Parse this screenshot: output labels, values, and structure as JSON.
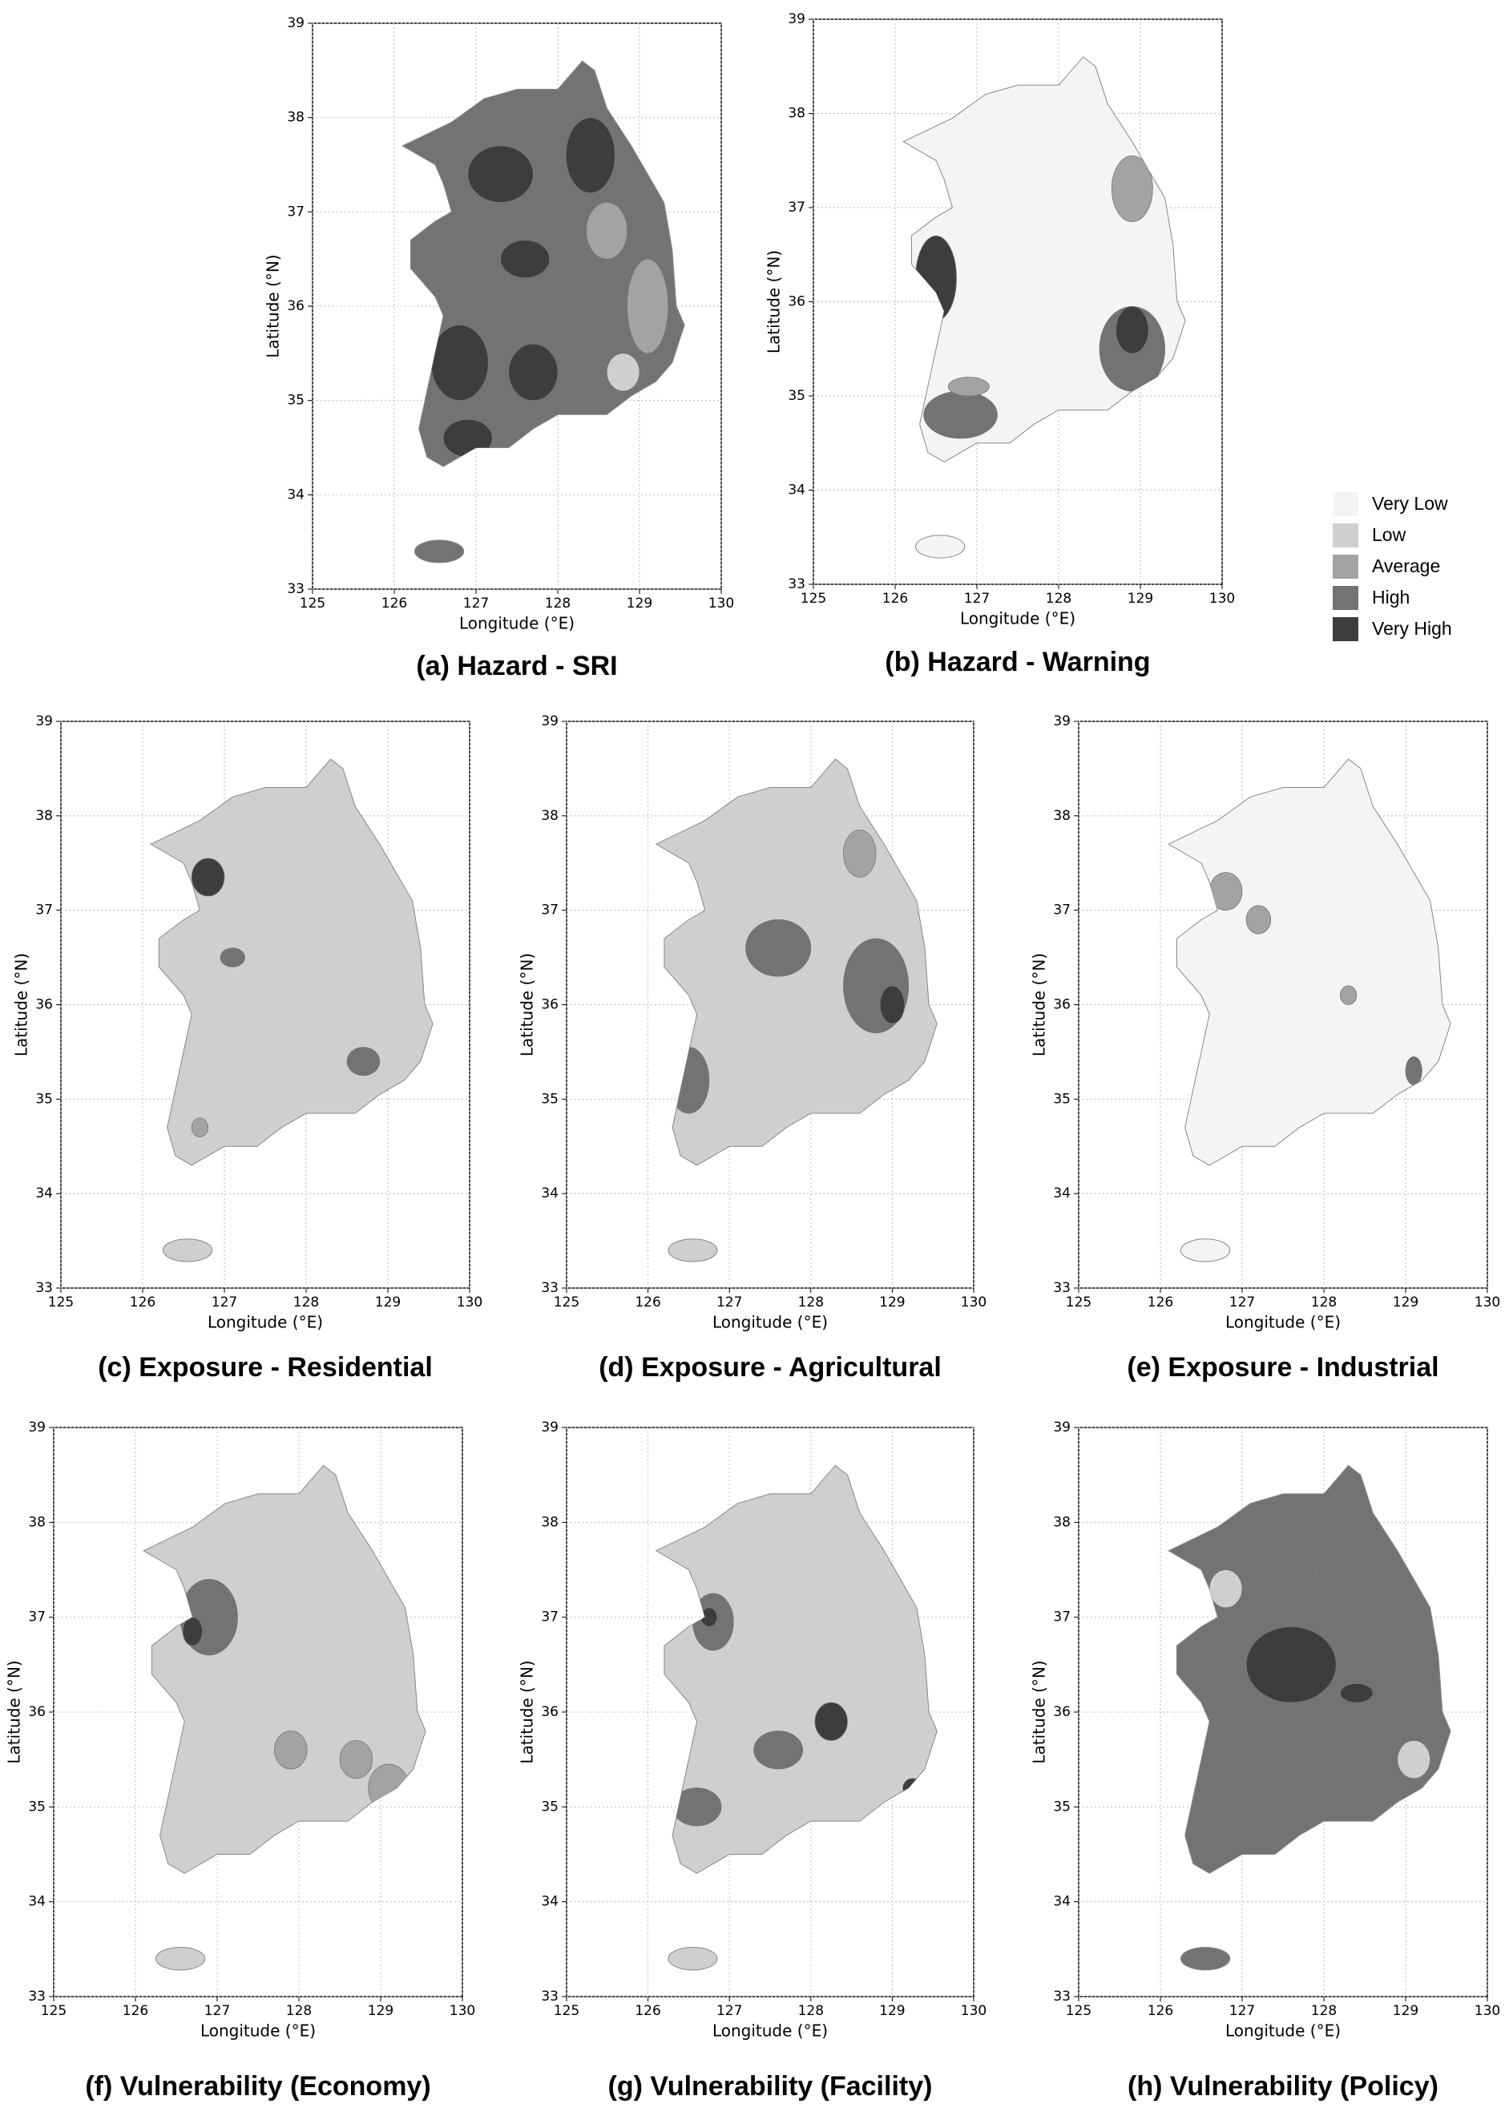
{
  "maps": [
    {
      "title": "(a) Hazard - SRI",
      "xlabel": "Longitude (°E)",
      "ylabel": "Latitude (°N)",
      "xlim": [
        125,
        130
      ],
      "ylim": [
        33,
        39
      ],
      "xticks": [
        125,
        126,
        127,
        128,
        129,
        130
      ],
      "yticks": [
        33,
        34,
        35,
        36,
        37,
        38,
        39
      ]
    },
    {
      "title": "(b) Hazard - Warning",
      "xlabel": "Longitude (°E)",
      "ylabel": "Latitude (°N)",
      "xlim": [
        125,
        130
      ],
      "ylim": [
        33,
        39
      ],
      "xticks": [
        125,
        126,
        127,
        128,
        129,
        130
      ],
      "yticks": [
        33,
        34,
        35,
        36,
        37,
        38,
        39
      ]
    },
    {
      "title": "(c) Exposure - Residential",
      "xlabel": "Longitude (°E)",
      "ylabel": "Latitude (°N)",
      "xlim": [
        125,
        130
      ],
      "ylim": [
        33,
        39
      ],
      "xticks": [
        125,
        126,
        127,
        128,
        129,
        130
      ],
      "yticks": [
        33,
        34,
        35,
        36,
        37,
        38,
        39
      ]
    },
    {
      "title": "(d) Exposure - Agricultural",
      "xlabel": "Longitude (°E)",
      "ylabel": "Latitude (°N)",
      "xlim": [
        125,
        130
      ],
      "ylim": [
        33,
        39
      ],
      "xticks": [
        125,
        126,
        127,
        128,
        129,
        130
      ],
      "yticks": [
        33,
        34,
        35,
        36,
        37,
        38,
        39
      ]
    },
    {
      "title": "(e) Exposure - Industrial",
      "xlabel": "Longitude (°E)",
      "ylabel": "Latitude (°N)",
      "xlim": [
        125,
        130
      ],
      "ylim": [
        33,
        39
      ],
      "xticks": [
        125,
        126,
        127,
        128,
        129,
        130
      ],
      "yticks": [
        33,
        34,
        35,
        36,
        37,
        38,
        39
      ]
    },
    {
      "title": "(f) Vulnerability (Economy)",
      "xlabel": "Longitude (°E)",
      "ylabel": "Latitude (°N)",
      "xlim": [
        125,
        130
      ],
      "ylim": [
        33,
        39
      ],
      "xticks": [
        125,
        126,
        127,
        128,
        129,
        130
      ],
      "yticks": [
        33,
        34,
        35,
        36,
        37,
        38,
        39
      ]
    },
    {
      "title": "(g) Vulnerability (Facility)",
      "xlabel": "Longitude (°E)",
      "ylabel": "Latitude (°N)",
      "xlim": [
        125,
        130
      ],
      "ylim": [
        33,
        39
      ],
      "xticks": [
        125,
        126,
        127,
        128,
        129,
        130
      ],
      "yticks": [
        33,
        34,
        35,
        36,
        37,
        38,
        39
      ]
    },
    {
      "title": "(h) Vulnerability (Policy)",
      "xlabel": "Longitude (°E)",
      "ylabel": "Latitude (°N)",
      "xlim": [
        125,
        130
      ],
      "ylim": [
        33,
        39
      ],
      "xticks": [
        125,
        126,
        127,
        128,
        129,
        130
      ],
      "yticks": [
        33,
        34,
        35,
        36,
        37,
        38,
        39
      ]
    }
  ],
  "legend": {
    "items": [
      {
        "label": "Very Low",
        "color": "#f4f4f4"
      },
      {
        "label": "Low",
        "color": "#cfcfcf"
      },
      {
        "label": "Average",
        "color": "#a3a3a3"
      },
      {
        "label": "High",
        "color": "#737373"
      },
      {
        "label": "Very High",
        "color": "#3d3d3d"
      }
    ]
  }
}
